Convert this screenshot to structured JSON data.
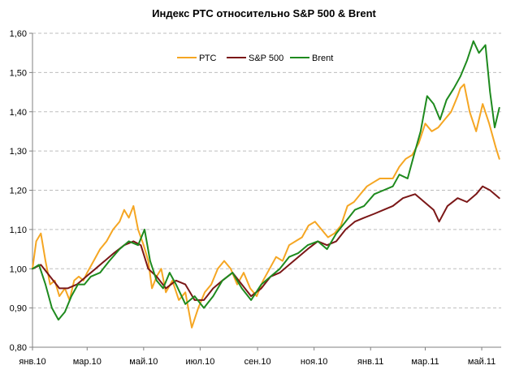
{
  "chart_data": {
    "type": "line",
    "title": "Индекс РТС относительно S&P 500 & Brent",
    "xlabel": "",
    "ylabel": "",
    "ylim": [
      0.8,
      1.6
    ],
    "yticks": [
      "1,60",
      "1,50",
      "1,40",
      "1,30",
      "1,20",
      "1,10",
      "1,00",
      "0,90",
      "0,80"
    ],
    "ytick_values": [
      1.6,
      1.5,
      1.4,
      1.3,
      1.2,
      1.1,
      1.0,
      0.9,
      0.8
    ],
    "xtick_labels": [
      "янв.10",
      "мар.10",
      "май.10",
      "июл.10",
      "сен.10",
      "ноя.10",
      "янв.11",
      "мар.11",
      "май.11"
    ],
    "xtick_dates": [
      "2010-01-01",
      "2010-03-01",
      "2010-05-01",
      "2010-07-01",
      "2010-09-01",
      "2010-11-01",
      "2011-01-01",
      "2011-03-01",
      "2011-05-01"
    ],
    "xlim": [
      "2010-01-01",
      "2011-05-22"
    ],
    "grid": "horizontal dashed",
    "legend_position": "top-center",
    "series": [
      {
        "name": "РТС",
        "color": "#f5a623",
        "x": [
          "2010-01-01",
          "2010-01-05",
          "2010-01-10",
          "2010-01-15",
          "2010-01-20",
          "2010-01-25",
          "2010-01-30",
          "2010-02-05",
          "2010-02-10",
          "2010-02-15",
          "2010-02-20",
          "2010-02-25",
          "2010-03-01",
          "2010-03-08",
          "2010-03-15",
          "2010-03-22",
          "2010-03-29",
          "2010-04-05",
          "2010-04-10",
          "2010-04-15",
          "2010-04-20",
          "2010-04-25",
          "2010-05-01",
          "2010-05-06",
          "2010-05-10",
          "2010-05-15",
          "2010-05-20",
          "2010-05-25",
          "2010-06-01",
          "2010-06-08",
          "2010-06-15",
          "2010-06-22",
          "2010-06-29",
          "2010-07-06",
          "2010-07-13",
          "2010-07-20",
          "2010-07-27",
          "2010-08-03",
          "2010-08-10",
          "2010-08-17",
          "2010-08-24",
          "2010-08-31",
          "2010-09-07",
          "2010-09-14",
          "2010-09-21",
          "2010-09-28",
          "2010-10-05",
          "2010-10-12",
          "2010-10-19",
          "2010-10-26",
          "2010-11-02",
          "2010-11-09",
          "2010-11-16",
          "2010-11-23",
          "2010-11-30",
          "2010-12-07",
          "2010-12-14",
          "2010-12-21",
          "2010-12-28",
          "2011-01-04",
          "2011-01-11",
          "2011-01-18",
          "2011-01-25",
          "2011-02-01",
          "2011-02-08",
          "2011-02-15",
          "2011-02-22",
          "2011-03-01",
          "2011-03-08",
          "2011-03-15",
          "2011-03-22",
          "2011-03-29",
          "2011-04-05",
          "2011-04-08",
          "2011-04-12",
          "2011-04-18",
          "2011-04-25",
          "2011-05-02",
          "2011-05-09",
          "2011-05-16",
          "2011-05-20"
        ],
        "values": [
          1.0,
          1.07,
          1.09,
          1.02,
          0.96,
          0.97,
          0.93,
          0.95,
          0.92,
          0.97,
          0.98,
          0.97,
          0.99,
          1.02,
          1.05,
          1.07,
          1.1,
          1.12,
          1.15,
          1.13,
          1.16,
          1.1,
          1.06,
          1.02,
          0.95,
          0.98,
          1.0,
          0.94,
          0.97,
          0.92,
          0.94,
          0.85,
          0.9,
          0.94,
          0.96,
          1.0,
          1.02,
          1.0,
          0.96,
          0.99,
          0.95,
          0.93,
          0.97,
          1.0,
          1.03,
          1.02,
          1.06,
          1.07,
          1.08,
          1.11,
          1.12,
          1.1,
          1.08,
          1.09,
          1.11,
          1.16,
          1.17,
          1.19,
          1.21,
          1.22,
          1.23,
          1.23,
          1.23,
          1.26,
          1.28,
          1.29,
          1.32,
          1.37,
          1.35,
          1.36,
          1.38,
          1.4,
          1.44,
          1.46,
          1.47,
          1.4,
          1.35,
          1.42,
          1.37,
          1.31,
          1.28
        ]
      },
      {
        "name": "S&P 500",
        "color": "#7b1717",
        "x": [
          "2010-01-01",
          "2010-01-10",
          "2010-01-20",
          "2010-01-30",
          "2010-02-08",
          "2010-02-18",
          "2010-02-28",
          "2010-03-10",
          "2010-03-20",
          "2010-03-30",
          "2010-04-10",
          "2010-04-20",
          "2010-04-28",
          "2010-05-06",
          "2010-05-15",
          "2010-05-25",
          "2010-06-05",
          "2010-06-15",
          "2010-06-25",
          "2010-07-05",
          "2010-07-15",
          "2010-07-25",
          "2010-08-05",
          "2010-08-15",
          "2010-08-25",
          "2010-09-05",
          "2010-09-15",
          "2010-09-25",
          "2010-10-05",
          "2010-10-15",
          "2010-10-25",
          "2010-11-05",
          "2010-11-15",
          "2010-11-25",
          "2010-12-05",
          "2010-12-15",
          "2010-12-25",
          "2011-01-05",
          "2011-01-15",
          "2011-01-25",
          "2011-02-05",
          "2011-02-18",
          "2011-02-28",
          "2011-03-10",
          "2011-03-16",
          "2011-03-25",
          "2011-04-05",
          "2011-04-15",
          "2011-04-25",
          "2011-05-02",
          "2011-05-10",
          "2011-05-20"
        ],
        "values": [
          1.0,
          1.01,
          0.98,
          0.95,
          0.95,
          0.96,
          0.98,
          1.0,
          1.02,
          1.04,
          1.06,
          1.07,
          1.06,
          1.0,
          0.98,
          0.95,
          0.97,
          0.96,
          0.92,
          0.92,
          0.95,
          0.97,
          0.99,
          0.96,
          0.93,
          0.95,
          0.98,
          0.99,
          1.01,
          1.03,
          1.05,
          1.07,
          1.06,
          1.07,
          1.1,
          1.12,
          1.13,
          1.14,
          1.15,
          1.16,
          1.18,
          1.19,
          1.17,
          1.15,
          1.12,
          1.16,
          1.18,
          1.17,
          1.19,
          1.21,
          1.2,
          1.18
        ]
      },
      {
        "name": "Brent",
        "color": "#1e8a1e",
        "x": [
          "2010-01-01",
          "2010-01-08",
          "2010-01-15",
          "2010-01-22",
          "2010-01-29",
          "2010-02-05",
          "2010-02-12",
          "2010-02-19",
          "2010-02-26",
          "2010-03-05",
          "2010-03-15",
          "2010-03-25",
          "2010-04-05",
          "2010-04-15",
          "2010-04-25",
          "2010-05-02",
          "2010-05-08",
          "2010-05-15",
          "2010-05-22",
          "2010-05-29",
          "2010-06-05",
          "2010-06-15",
          "2010-06-25",
          "2010-07-05",
          "2010-07-15",
          "2010-07-25",
          "2010-08-05",
          "2010-08-15",
          "2010-08-25",
          "2010-09-05",
          "2010-09-15",
          "2010-09-25",
          "2010-10-05",
          "2010-10-15",
          "2010-10-25",
          "2010-11-05",
          "2010-11-15",
          "2010-11-25",
          "2010-12-05",
          "2010-12-15",
          "2010-12-25",
          "2011-01-05",
          "2011-01-15",
          "2011-01-25",
          "2011-02-01",
          "2011-02-10",
          "2011-02-18",
          "2011-02-24",
          "2011-03-03",
          "2011-03-10",
          "2011-03-17",
          "2011-03-24",
          "2011-04-01",
          "2011-04-08",
          "2011-04-15",
          "2011-04-22",
          "2011-04-28",
          "2011-05-05",
          "2011-05-10",
          "2011-05-15",
          "2011-05-20"
        ],
        "values": [
          1.0,
          1.01,
          0.96,
          0.9,
          0.87,
          0.89,
          0.93,
          0.96,
          0.96,
          0.98,
          0.99,
          1.02,
          1.05,
          1.07,
          1.06,
          1.1,
          1.02,
          0.97,
          0.95,
          0.99,
          0.96,
          0.91,
          0.93,
          0.9,
          0.93,
          0.97,
          0.99,
          0.95,
          0.92,
          0.96,
          0.98,
          1.0,
          1.03,
          1.04,
          1.06,
          1.07,
          1.05,
          1.09,
          1.12,
          1.15,
          1.16,
          1.19,
          1.2,
          1.21,
          1.24,
          1.23,
          1.3,
          1.35,
          1.44,
          1.42,
          1.38,
          1.43,
          1.46,
          1.49,
          1.53,
          1.58,
          1.55,
          1.57,
          1.45,
          1.36,
          1.41
        ]
      }
    ]
  }
}
